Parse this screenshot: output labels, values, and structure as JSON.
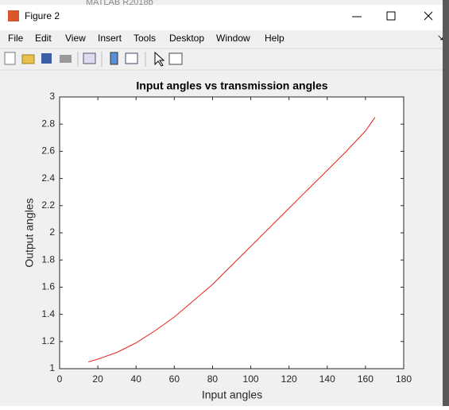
{
  "window": {
    "background_title": "MATLAB R2018b",
    "title": "Figure 2",
    "menu": [
      "File",
      "Edit",
      "View",
      "Insert",
      "Tools",
      "Desktop",
      "Window",
      "Help"
    ]
  },
  "chart_data": {
    "type": "line",
    "title": "Input angles vs transmission angles",
    "x_label": "Input angles",
    "y_label": "Output angles",
    "x": [
      15,
      20,
      30,
      40,
      50,
      60,
      70,
      80,
      90,
      100,
      110,
      120,
      130,
      140,
      150,
      160,
      165
    ],
    "series": [
      {
        "name": "Output angles",
        "color": "#e8221b",
        "values": [
          1.05,
          1.07,
          1.12,
          1.19,
          1.28,
          1.38,
          1.5,
          1.62,
          1.76,
          1.9,
          2.04,
          2.18,
          2.32,
          2.46,
          2.6,
          2.75,
          2.85
        ]
      }
    ],
    "xlim": [
      0,
      180
    ],
    "xticks": [
      0,
      20,
      40,
      60,
      80,
      100,
      120,
      140,
      160,
      180
    ],
    "ylim": [
      1,
      3
    ],
    "yticks": [
      1,
      1.2,
      1.4,
      1.6,
      1.8,
      2,
      2.2,
      2.4,
      2.6,
      2.8,
      3
    ],
    "grid": false
  }
}
